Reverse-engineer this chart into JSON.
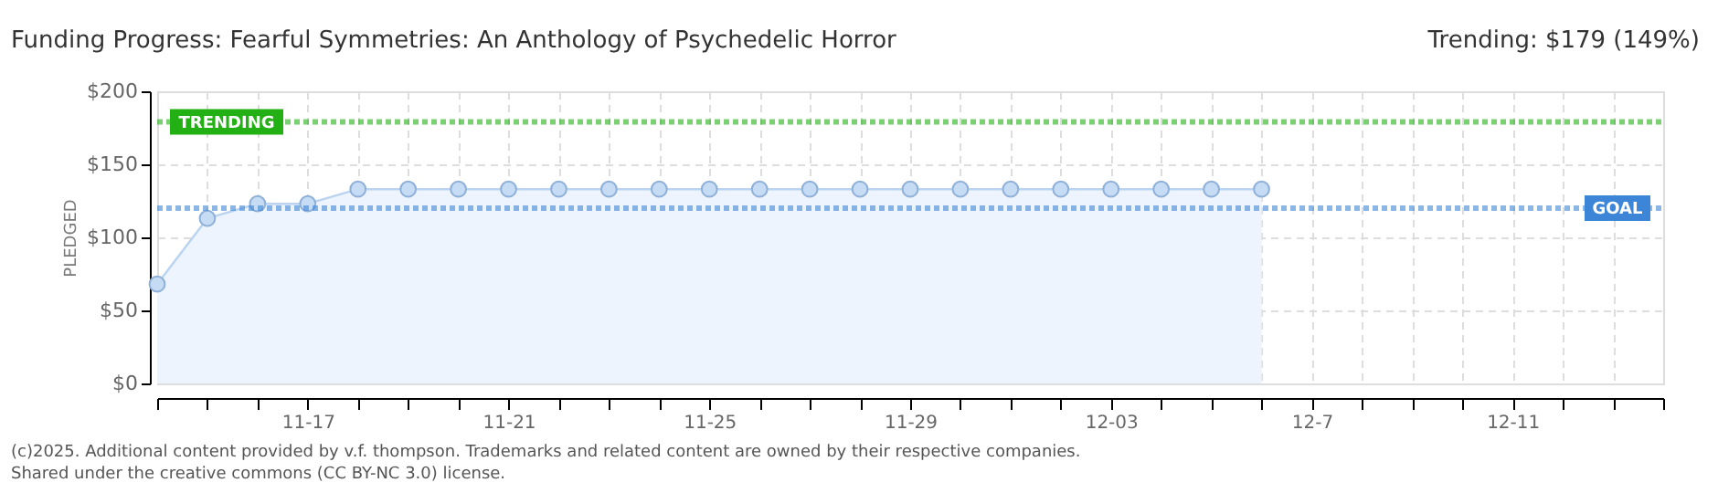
{
  "chart_data": {
    "type": "area",
    "title": "Funding Progress: Fearful Symmetries: An Anthology of Psychedelic Horror",
    "subtitle": "Trending: $179 (149%)",
    "ylabel": "PLEDGED",
    "x": [
      "2025-11-14",
      "2025-11-15",
      "2025-11-16",
      "2025-11-17",
      "2025-11-18",
      "2025-11-19",
      "2025-11-20",
      "2025-11-21",
      "2025-11-22",
      "2025-11-23",
      "2025-11-24",
      "2025-11-25",
      "2025-11-26",
      "2025-11-27",
      "2025-11-28",
      "2025-11-29",
      "2025-11-30",
      "2025-12-01",
      "2025-12-02",
      "2025-12-03",
      "2025-12-04",
      "2025-12-05",
      "2025-12-06"
    ],
    "series": [
      {
        "color": "#b9d3f0",
        "values": [
          68,
          113,
          123,
          123,
          133,
          133,
          133,
          133,
          133,
          133,
          133,
          133,
          133,
          133,
          133,
          133,
          133,
          133,
          133,
          133,
          133,
          133,
          133
        ]
      }
    ],
    "marker": "circle",
    "grid": true,
    "xlim": [
      "2025-11-14",
      "2025-12-14"
    ],
    "xticks": [
      {
        "value": "2025-11-14",
        "label": null
      },
      {
        "value": "2025-11-15",
        "label": null
      },
      {
        "value": "2025-11-16",
        "label": null
      },
      {
        "value": "2025-11-17",
        "label": "11-17"
      },
      {
        "value": "2025-11-18",
        "label": null
      },
      {
        "value": "2025-11-19",
        "label": null
      },
      {
        "value": "2025-11-20",
        "label": null
      },
      {
        "value": "2025-11-21",
        "label": "11-21"
      },
      {
        "value": "2025-11-22",
        "label": null
      },
      {
        "value": "2025-11-23",
        "label": null
      },
      {
        "value": "2025-11-24",
        "label": null
      },
      {
        "value": "2025-11-25",
        "label": "11-25"
      },
      {
        "value": "2025-11-26",
        "label": null
      },
      {
        "value": "2025-11-27",
        "label": null
      },
      {
        "value": "2025-11-28",
        "label": null
      },
      {
        "value": "2025-11-29",
        "label": "11-29"
      },
      {
        "value": "2025-11-30",
        "label": null
      },
      {
        "value": "2025-12-01",
        "label": null
      },
      {
        "value": "2025-12-02",
        "label": null
      },
      {
        "value": "2025-12-03",
        "label": "12-03"
      },
      {
        "value": "2025-12-04",
        "label": null
      },
      {
        "value": "2025-12-05",
        "label": null
      },
      {
        "value": "2025-12-06",
        "label": null
      },
      {
        "value": "2025-12-07",
        "label": "12-7"
      },
      {
        "value": "2025-12-08",
        "label": null
      },
      {
        "value": "2025-12-09",
        "label": null
      },
      {
        "value": "2025-12-10",
        "label": null
      },
      {
        "value": "2025-12-11",
        "label": "12-11"
      },
      {
        "value": "2025-12-12",
        "label": null
      },
      {
        "value": "2025-12-13",
        "label": null
      },
      {
        "value": "2025-12-14",
        "label": null
      }
    ],
    "ylim": [
      0,
      200
    ],
    "yticks": [
      {
        "value": 0,
        "label": "$0"
      },
      {
        "value": 50,
        "label": "$50"
      },
      {
        "value": 100,
        "label": "$100"
      },
      {
        "value": 150,
        "label": "$150"
      },
      {
        "value": 200,
        "label": "$200"
      }
    ],
    "ref_lines": [
      {
        "axis": "y",
        "value": 179,
        "label": "TRENDING",
        "color": "#22b014",
        "line_style": "dotted"
      },
      {
        "axis": "y",
        "value": 120,
        "label": "GOAL",
        "color": "#3d85d6",
        "line_style": "dotted"
      }
    ],
    "annotations": [
      "(c)2025. Additional content provided by v.f. thompson. Trademarks and related content are owned by their respective companies.",
      "Shared under the creative commons (CC BY-NC 3.0) license."
    ]
  }
}
